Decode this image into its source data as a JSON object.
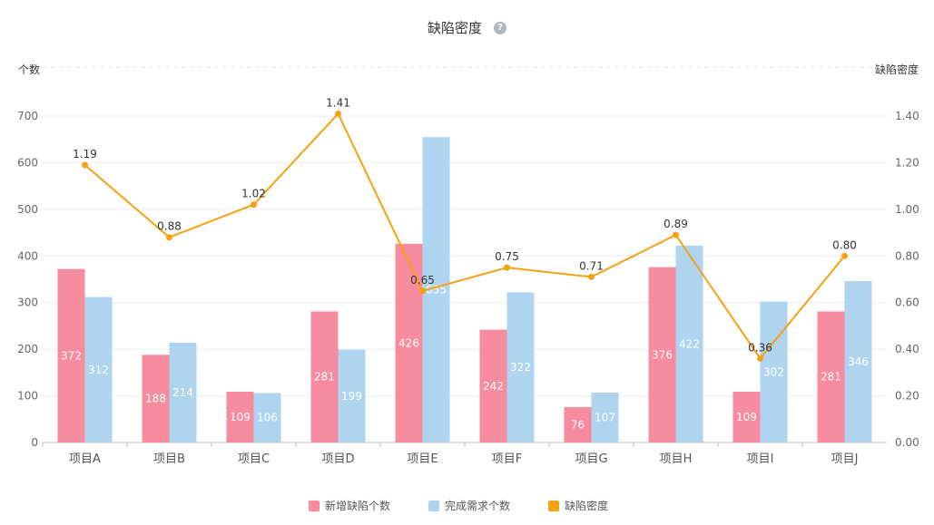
{
  "chart_data": {
    "type": "bar",
    "title": "缺陷密度",
    "help_icon": "question-circle-icon",
    "help_glyph": "?",
    "ylabel_left": "个数",
    "ylabel_right": "缺陷密度",
    "categories": [
      "项目A",
      "项目B",
      "项目C",
      "项目D",
      "项目E",
      "项目F",
      "项目G",
      "项目H",
      "项目I",
      "项目J"
    ],
    "series": [
      {
        "name": "新增缺陷个数",
        "kind": "bar",
        "axis": "left",
        "color": "#f78c9f",
        "values": [
          372,
          188,
          109,
          281,
          426,
          242,
          76,
          376,
          109,
          281
        ]
      },
      {
        "name": "完成需求个数",
        "kind": "bar",
        "axis": "left",
        "color": "#afd4f0",
        "values": [
          312,
          214,
          106,
          199,
          655,
          322,
          107,
          422,
          302,
          346
        ]
      },
      {
        "name": "缺陷密度",
        "kind": "line",
        "axis": "right",
        "color": "#f5a212",
        "values": [
          1.19,
          0.88,
          1.02,
          1.41,
          0.65,
          0.75,
          0.71,
          0.89,
          0.36,
          0.8
        ],
        "labels": [
          "1.19",
          "0.88",
          "1.02",
          "1.41",
          "0.65",
          "0.75",
          "0.71",
          "0.89",
          "0.36",
          "0.80"
        ]
      }
    ],
    "ylim_left": [
      0,
      700
    ],
    "yticks_left": [
      "0",
      "100",
      "200",
      "300",
      "400",
      "500",
      "600",
      "700"
    ],
    "ylim_right": [
      0,
      1.4
    ],
    "yticks_right": [
      "0.00",
      "0.20",
      "0.40",
      "0.60",
      "0.80",
      "1.00",
      "1.20",
      "1.40"
    ],
    "grid": true,
    "legend_position": "bottom-center"
  }
}
